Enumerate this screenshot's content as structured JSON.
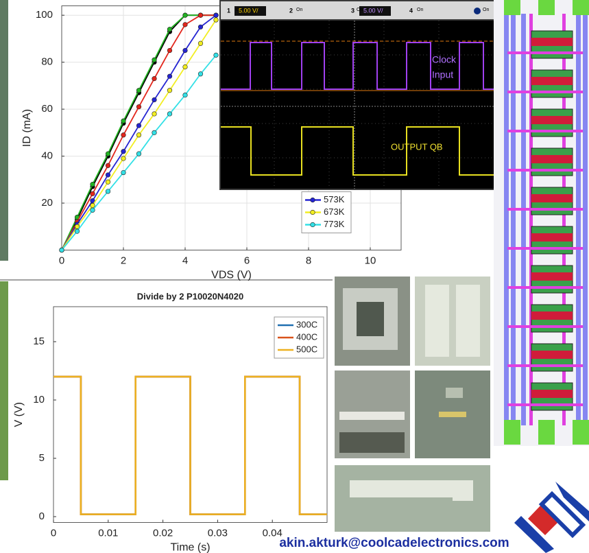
{
  "chart_data": [
    {
      "type": "line",
      "x_label": "VDS (V)",
      "y_label": "ID (mA)",
      "x": [
        0,
        0.5,
        1,
        1.5,
        2,
        2.5,
        3,
        3.5,
        4,
        4.5,
        5
      ],
      "xlim": [
        0,
        11
      ],
      "ylim": [
        0,
        104
      ],
      "xticks": [
        0,
        2,
        4,
        6,
        8,
        10
      ],
      "yticks": [
        20,
        40,
        60,
        80,
        100
      ],
      "grid": true,
      "markers": true,
      "legend": "lower right",
      "series": [
        {
          "color": "#000000",
          "values": [
            0,
            13,
            27,
            40,
            54,
            67,
            80,
            93,
            100,
            100,
            100
          ]
        },
        {
          "color": "#22b422",
          "values": [
            0,
            14,
            28,
            41,
            55,
            68,
            81,
            94,
            100,
            100,
            100
          ]
        },
        {
          "color": "#e3261c",
          "values": [
            0,
            12,
            24,
            36,
            49,
            61,
            73,
            85,
            96,
            100,
            100
          ]
        },
        {
          "name": "573K",
          "color": "#2424d2",
          "values": [
            0,
            11,
            21,
            32,
            42,
            53,
            64,
            74,
            85,
            95,
            100
          ]
        },
        {
          "name": "673K",
          "color": "#f2ee22",
          "values": [
            0,
            10,
            19,
            29,
            39,
            49,
            58,
            68,
            78,
            88,
            98
          ]
        },
        {
          "name": "773K",
          "color": "#33e0e6",
          "values": [
            0,
            8,
            17,
            25,
            33,
            41,
            50,
            58,
            66,
            75,
            83
          ]
        }
      ]
    },
    {
      "type": "line",
      "title": "Divide by 2 P10020N4020",
      "x_label": "Time (s)",
      "y_label": "V (V)",
      "x": [
        0,
        0.005,
        0.005,
        0.015,
        0.015,
        0.025,
        0.025,
        0.035,
        0.035,
        0.045,
        0.045,
        0.05
      ],
      "xlim": [
        0,
        0.05
      ],
      "ylim": [
        -0.5,
        18
      ],
      "xticks": [
        0,
        0.01,
        0.02,
        0.03,
        0.04
      ],
      "yticks": [
        0,
        5,
        10,
        15
      ],
      "grid": false,
      "markers": false,
      "legend": "upper right",
      "series": [
        {
          "name": "300C",
          "color": "#1f6fb0",
          "values": [
            12,
            12,
            0.2,
            0.2,
            12,
            12,
            0.2,
            0.2,
            12,
            12,
            0.2,
            0.2
          ]
        },
        {
          "name": "400C",
          "color": "#d9531a",
          "values": [
            12,
            12,
            0.2,
            0.2,
            12,
            12,
            0.2,
            0.2,
            12,
            12,
            0.2,
            0.2
          ]
        },
        {
          "name": "500C",
          "color": "#edb120",
          "values": [
            12,
            12,
            0.2,
            0.2,
            12,
            12,
            0.2,
            0.2,
            12,
            12,
            0.2,
            0.2
          ]
        }
      ]
    }
  ],
  "oscilloscope": {
    "channels": [
      {
        "number": "1",
        "state": "On",
        "scale": "5.00 V/"
      },
      {
        "number": "2",
        "state": "On"
      },
      {
        "number": "3",
        "state": "On",
        "scale": "5.00 V/"
      },
      {
        "number": "4",
        "state": "On"
      }
    ],
    "display_state": "On",
    "labels": [
      "Clock",
      "Input",
      "OUTPUT QB"
    ]
  },
  "email": "akin.akturk@coolcadelectronics.com"
}
